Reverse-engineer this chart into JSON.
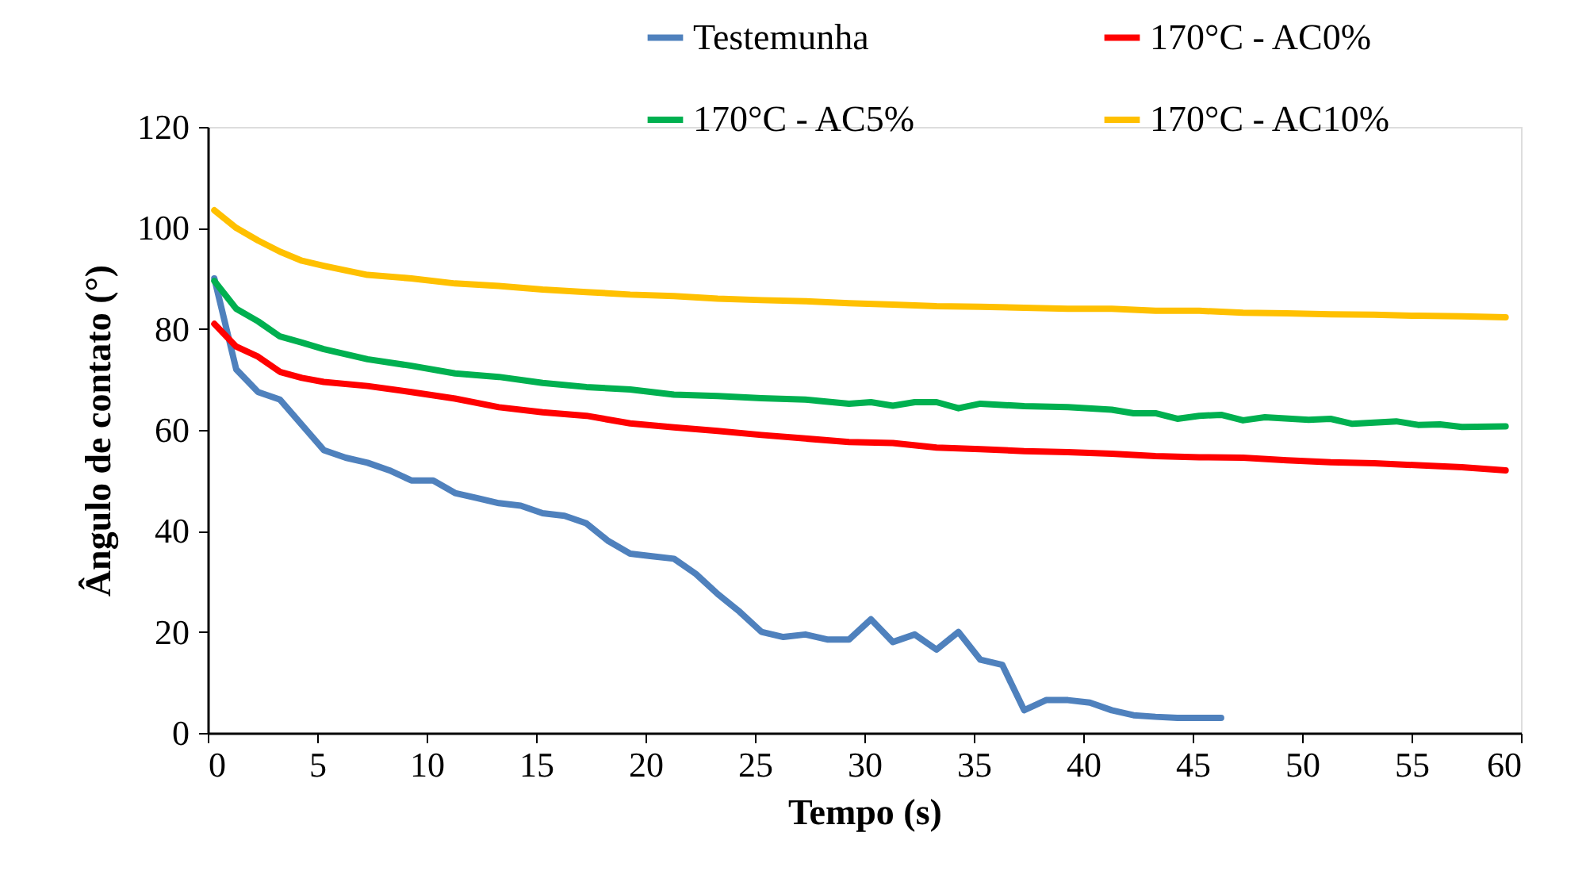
{
  "chart_data": {
    "type": "line",
    "xlabel": "Tempo (s)",
    "ylabel": "Ângulo de contato (°)",
    "xlim": [
      0,
      60
    ],
    "xticks": [
      0,
      5,
      10,
      15,
      20,
      25,
      30,
      35,
      40,
      45,
      50,
      55,
      60
    ],
    "ylim": [
      0,
      120
    ],
    "yticks": [
      0,
      20,
      40,
      60,
      80,
      100,
      120
    ],
    "grid": false,
    "legend": "top right",
    "marker": "none",
    "line_style": "solid",
    "series": [
      {
        "name": "Testemunha",
        "color": "#4f81bd",
        "x": [
          0.3,
          1.3,
          2.3,
          3.3,
          4.3,
          5.3,
          6.3,
          7.3,
          8.3,
          9.3,
          10.3,
          11.3,
          12.3,
          13.3,
          14.3,
          15.3,
          16.3,
          17.3,
          18.3,
          19.3,
          20.3,
          21.3,
          22.3,
          23.3,
          24.3,
          25.3,
          26.3,
          27.3,
          28.3,
          29.3,
          30.3,
          31.3,
          32.3,
          33.3,
          34.3,
          35.3,
          36.3,
          37.3,
          38.3,
          39.3,
          40.3,
          41.3,
          42.3,
          43.3,
          44.3,
          45.3,
          46.3
        ],
        "values": [
          90,
          72,
          67.5,
          66,
          61,
          56,
          54.5,
          53.5,
          52,
          50,
          50,
          47.5,
          46.5,
          45.5,
          45,
          43.5,
          43,
          41.5,
          38,
          35.5,
          35,
          34.5,
          31.5,
          27.5,
          24,
          20,
          19,
          19.5,
          18.5,
          18.5,
          22.5,
          18,
          19.5,
          16.5,
          20,
          14.5,
          13.5,
          4.5,
          6.5,
          6.5,
          6,
          4.5,
          3.5,
          3.2,
          3,
          3,
          3
        ]
      },
      {
        "name": "170°C - AC0%",
        "color": "#ff0000",
        "x": [
          0.3,
          1.3,
          2.3,
          3.3,
          4.3,
          5.3,
          7.3,
          9.3,
          11.3,
          13.3,
          15.3,
          17.3,
          19.3,
          21.3,
          23.3,
          25.3,
          27.3,
          29.3,
          31.3,
          33.3,
          35.3,
          37.3,
          39.3,
          41.3,
          43.3,
          45.3,
          47.3,
          49.3,
          51.3,
          53.3,
          55.3,
          57.3,
          59.3
        ],
        "values": [
          81,
          76.5,
          74.5,
          71.5,
          70.3,
          69.5,
          68.7,
          67.5,
          66.2,
          64.5,
          63.5,
          62.8,
          61.3,
          60.5,
          59.8,
          59,
          58.3,
          57.6,
          57.4,
          56.5,
          56.2,
          55.8,
          55.6,
          55.3,
          54.8,
          54.6,
          54.5,
          54,
          53.6,
          53.4,
          53,
          52.6,
          52
        ]
      },
      {
        "name": "170°C - AC5%",
        "color": "#00b050",
        "x": [
          0.3,
          1.3,
          2.3,
          3.3,
          4.3,
          5.3,
          7.3,
          9.3,
          11.3,
          13.3,
          15.3,
          17.3,
          19.3,
          21.3,
          23.3,
          25.3,
          27.3,
          29.3,
          30.3,
          31.3,
          32.3,
          33.3,
          34.3,
          35.3,
          37.3,
          39.3,
          41.3,
          42.3,
          43.3,
          44.3,
          45.3,
          46.3,
          47.3,
          48.3,
          50.3,
          51.3,
          52.3,
          54.3,
          55.3,
          56.3,
          57.3,
          59.3
        ],
        "values": [
          89.5,
          84,
          81.5,
          78.5,
          77.3,
          76,
          74,
          72.7,
          71.2,
          70.5,
          69.3,
          68.5,
          68,
          67,
          66.7,
          66.3,
          66,
          65.2,
          65.5,
          64.8,
          65.5,
          65.5,
          64.3,
          65.2,
          64.7,
          64.5,
          64,
          63.3,
          63.3,
          62.2,
          62.8,
          63,
          61.9,
          62.5,
          62,
          62.2,
          61.2,
          61.7,
          61,
          61.1,
          60.6,
          60.7
        ]
      },
      {
        "name": "170°C - AC10%",
        "color": "#ffc000",
        "x": [
          0.3,
          1.3,
          2.3,
          3.3,
          4.3,
          5.3,
          7.3,
          9.3,
          11.3,
          13.3,
          15.3,
          17.3,
          19.3,
          21.3,
          23.3,
          25.3,
          27.3,
          29.3,
          31.3,
          33.3,
          35.3,
          37.3,
          39.3,
          41.3,
          43.3,
          45.3,
          47.3,
          49.3,
          51.3,
          53.3,
          55.3,
          57.3,
          59.3
        ],
        "values": [
          103.5,
          100,
          97.5,
          95.3,
          93.5,
          92.5,
          90.7,
          90,
          89,
          88.5,
          87.8,
          87.3,
          86.8,
          86.5,
          86,
          85.7,
          85.5,
          85.1,
          84.8,
          84.5,
          84.4,
          84.2,
          84,
          84,
          83.6,
          83.6,
          83.2,
          83.1,
          82.9,
          82.8,
          82.6,
          82.5,
          82.3
        ]
      }
    ]
  }
}
